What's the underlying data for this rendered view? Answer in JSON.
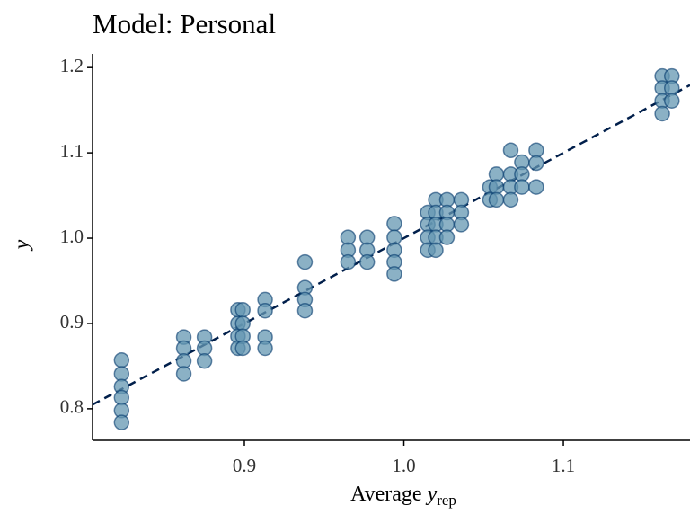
{
  "chart_data": {
    "type": "scatter",
    "title": "Model: Personal",
    "x_label": [
      "Average",
      "y",
      "rep"
    ],
    "y_label": "y",
    "x": [
      0.823,
      0.823,
      0.823,
      0.823,
      0.823,
      0.823,
      0.862,
      0.862,
      0.862,
      0.862,
      0.875,
      0.875,
      0.875,
      0.896,
      0.896,
      0.896,
      0.896,
      0.899,
      0.899,
      0.899,
      0.899,
      0.913,
      0.913,
      0.913,
      0.913,
      0.938,
      0.938,
      0.938,
      0.938,
      0.965,
      0.965,
      0.965,
      0.977,
      0.977,
      0.977,
      0.994,
      0.994,
      0.994,
      0.994,
      0.994,
      1.015,
      1.015,
      1.015,
      1.015,
      1.02,
      1.02,
      1.02,
      1.02,
      1.02,
      1.027,
      1.027,
      1.027,
      1.027,
      1.036,
      1.036,
      1.036,
      1.054,
      1.054,
      1.058,
      1.058,
      1.058,
      1.067,
      1.067,
      1.067,
      1.067,
      1.074,
      1.074,
      1.074,
      1.083,
      1.083,
      1.083,
      1.162,
      1.162,
      1.162,
      1.162,
      1.168,
      1.168,
      1.168
    ],
    "values": [
      0.857,
      0.841,
      0.826,
      0.813,
      0.798,
      0.784,
      0.884,
      0.871,
      0.856,
      0.841,
      0.884,
      0.871,
      0.856,
      0.916,
      0.9,
      0.885,
      0.871,
      0.916,
      0.9,
      0.885,
      0.871,
      0.928,
      0.915,
      0.884,
      0.871,
      0.972,
      0.942,
      0.928,
      0.915,
      1.001,
      0.986,
      0.972,
      1.001,
      0.986,
      0.972,
      1.017,
      1.001,
      0.986,
      0.972,
      0.958,
      1.03,
      1.016,
      1.001,
      0.986,
      1.045,
      1.03,
      1.016,
      1.001,
      0.986,
      1.045,
      1.03,
      1.016,
      1.001,
      1.045,
      1.03,
      1.016,
      1.06,
      1.045,
      1.075,
      1.06,
      1.045,
      1.103,
      1.075,
      1.06,
      1.045,
      1.089,
      1.075,
      1.06,
      1.103,
      1.088,
      1.06,
      1.19,
      1.176,
      1.161,
      1.146,
      1.19,
      1.176,
      1.161
    ],
    "color": "#6497b1",
    "edge_color": "#03396c",
    "line_color": "#011f4b",
    "xlim": [
      0.8048,
      1.1794
    ],
    "ylim": [
      0.763,
      1.216
    ],
    "xticks": [
      0.9,
      {
        "value": 1.0,
        "label": "1.0"
      },
      1.1
    ],
    "yticks": [
      0.8,
      0.9,
      {
        "value": 1.0,
        "label": "1.0"
      },
      1.1,
      1.2
    ],
    "grid": false
  }
}
